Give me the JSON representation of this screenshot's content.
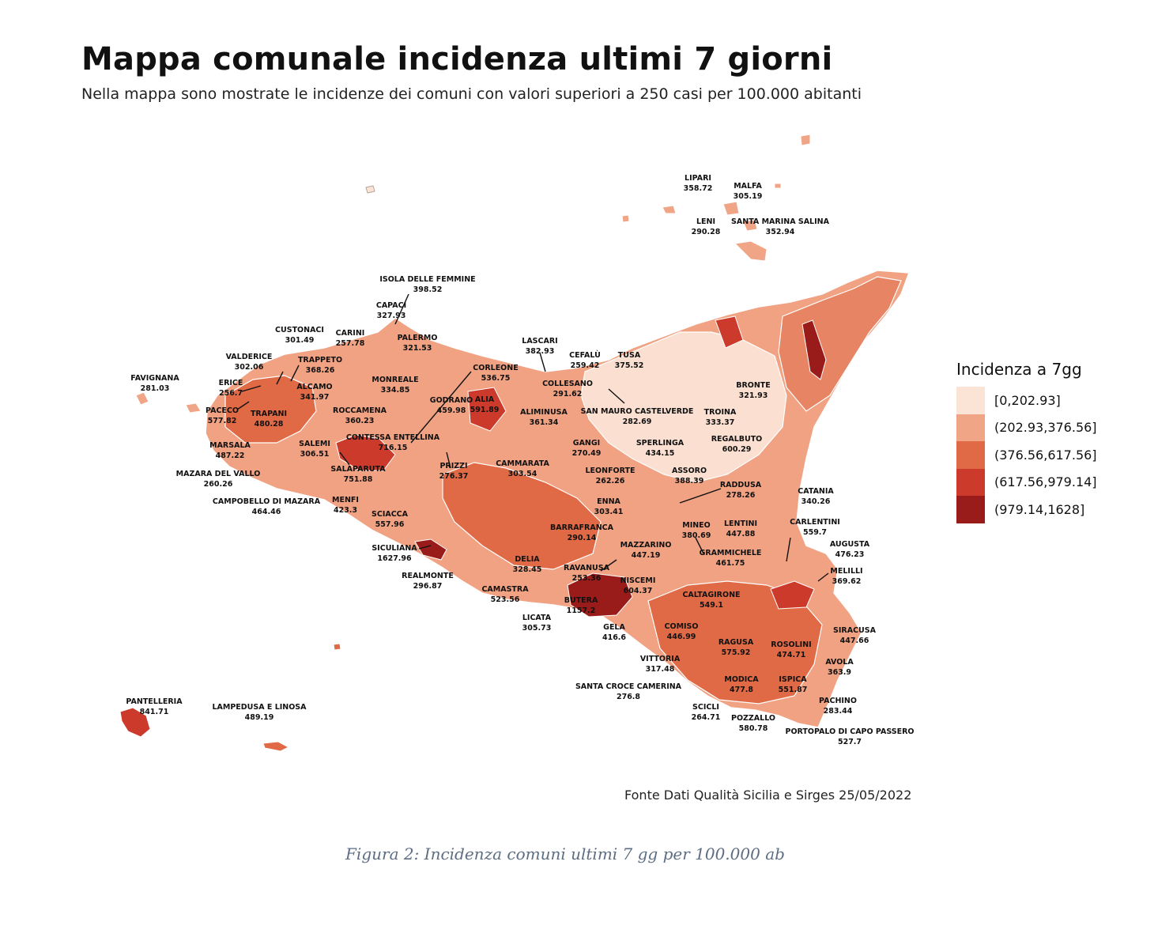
{
  "title": "Mappa comunale incidenza ultimi 7 giorni",
  "subtitle": "Nella mappa sono mostrate le incidenze dei comuni con valori superiori a 250 casi per 100.000 abitanti",
  "legend": {
    "title": "Incidenza a 7gg",
    "classes": [
      {
        "label": "[0,202.93]",
        "color": "#fbe3d6"
      },
      {
        "label": "(202.93,376.56]",
        "color": "#f1a587"
      },
      {
        "label": "(376.56,617.56]",
        "color": "#e06a45"
      },
      {
        "label": "(617.56,979.14]",
        "color": "#cc3a2b"
      },
      {
        "label": "(979.14,1628]",
        "color": "#9a1c1a"
      }
    ]
  },
  "places": [
    {
      "name": "LIPARI",
      "value": "358.72"
    },
    {
      "name": "MALFA",
      "value": "305.19"
    },
    {
      "name": "LENI",
      "value": "290.28"
    },
    {
      "name": "SANTA MARINA SALINA",
      "value": "352.94"
    },
    {
      "name": "ISOLA DELLE FEMMINE",
      "value": "398.52"
    },
    {
      "name": "CAPACI",
      "value": "327.93"
    },
    {
      "name": "CUSTONACI",
      "value": "301.49"
    },
    {
      "name": "CARINI",
      "value": "257.78"
    },
    {
      "name": "PALERMO",
      "value": "321.53"
    },
    {
      "name": "LASCARI",
      "value": "382.93"
    },
    {
      "name": "VALDERICE",
      "value": "302.06"
    },
    {
      "name": "TRAPPETO",
      "value": "368.26"
    },
    {
      "name": "CEFALÙ",
      "value": "259.42"
    },
    {
      "name": "TUSA",
      "value": "375.52"
    },
    {
      "name": "FAVIGNANA",
      "value": "281.03"
    },
    {
      "name": "CORLEONE",
      "value": "536.75"
    },
    {
      "name": "MONREALE",
      "value": "334.85"
    },
    {
      "name": "ERICE",
      "value": "256.7"
    },
    {
      "name": "ALCAMO",
      "value": "341.97"
    },
    {
      "name": "COLLESANO",
      "value": "291.62"
    },
    {
      "name": "BRONTE",
      "value": "321.93"
    },
    {
      "name": "PACECO",
      "value": "577.82"
    },
    {
      "name": "TRAPANI",
      "value": "480.28"
    },
    {
      "name": "ROCCAMENA",
      "value": "360.23"
    },
    {
      "name": "GODRANO",
      "value": "459.98"
    },
    {
      "name": "ALIA",
      "value": "591.89"
    },
    {
      "name": "ALIMINUSA",
      "value": "361.34"
    },
    {
      "name": "SAN MAURO CASTELVERDE",
      "value": "282.69"
    },
    {
      "name": "TROINA",
      "value": "333.37"
    },
    {
      "name": "CONTESSA ENTELLINA",
      "value": "716.15"
    },
    {
      "name": "MARSALA",
      "value": "487.22"
    },
    {
      "name": "SALEMI",
      "value": "306.51"
    },
    {
      "name": "GANGI",
      "value": "270.49"
    },
    {
      "name": "SPERLINGA",
      "value": "434.15"
    },
    {
      "name": "REGALBUTO",
      "value": "600.29"
    },
    {
      "name": "SALAPARUTA",
      "value": "751.88"
    },
    {
      "name": "PRIZZI",
      "value": "276.37"
    },
    {
      "name": "CAMMARATA",
      "value": "303.54"
    },
    {
      "name": "LEONFORTE",
      "value": "262.26"
    },
    {
      "name": "ASSORO",
      "value": "388.39"
    },
    {
      "name": "MAZARA DEL VALLO",
      "value": "260.26"
    },
    {
      "name": "RADDUSA",
      "value": "278.26"
    },
    {
      "name": "CATANIA",
      "value": "340.26"
    },
    {
      "name": "CAMPOBELLO DI MAZARA",
      "value": "464.46"
    },
    {
      "name": "MENFI",
      "value": "423.3"
    },
    {
      "name": "ENNA",
      "value": "303.41"
    },
    {
      "name": "SCIACCA",
      "value": "557.96"
    },
    {
      "name": "MINEO",
      "value": "380.69"
    },
    {
      "name": "LENTINI",
      "value": "447.88"
    },
    {
      "name": "CARLENTINI",
      "value": "559.7"
    },
    {
      "name": "BARRAFRANCA",
      "value": "290.14"
    },
    {
      "name": "SICULIANA",
      "value": "1627.96"
    },
    {
      "name": "MAZZARINO",
      "value": "447.19"
    },
    {
      "name": "AUGUSTA",
      "value": "476.23"
    },
    {
      "name": "DELIA",
      "value": "328.45"
    },
    {
      "name": "GRAMMICHELE",
      "value": "461.75"
    },
    {
      "name": "MELILLI",
      "value": "369.62"
    },
    {
      "name": "REALMONTE",
      "value": "296.87"
    },
    {
      "name": "RAVANUSA",
      "value": "253.36"
    },
    {
      "name": "NISCEMI",
      "value": "604.37"
    },
    {
      "name": "CALTAGIRONE",
      "value": "549.1"
    },
    {
      "name": "CAMASTRA",
      "value": "523.56"
    },
    {
      "name": "BUTERA",
      "value": "1157.2"
    },
    {
      "name": "LICATA",
      "value": "305.73"
    },
    {
      "name": "GELA",
      "value": "416.6"
    },
    {
      "name": "COMISO",
      "value": "446.99"
    },
    {
      "name": "SIRACUSA",
      "value": "447.66"
    },
    {
      "name": "RAGUSA",
      "value": "575.92"
    },
    {
      "name": "ROSOLINI",
      "value": "474.71"
    },
    {
      "name": "VITTORIA",
      "value": "317.48"
    },
    {
      "name": "AVOLA",
      "value": "363.9"
    },
    {
      "name": "MODICA",
      "value": "477.8"
    },
    {
      "name": "ISPICA",
      "value": "551.87"
    },
    {
      "name": "SANTA CROCE CAMERINA",
      "value": "276.8"
    },
    {
      "name": "PACHINO",
      "value": "283.44"
    },
    {
      "name": "PANTELLERIA",
      "value": "841.71"
    },
    {
      "name": "LAMPEDUSA E LINOSA",
      "value": "489.19"
    },
    {
      "name": "SCICLI",
      "value": "264.71"
    },
    {
      "name": "POZZALLO",
      "value": "580.78"
    },
    {
      "name": "PORTOPALO DI CAPO PASSERO",
      "value": "527.7"
    }
  ],
  "source": "Fonte Dati Qualità Sicilia e Sirges 25/05/2022",
  "caption": "Figura 2: Incidenza comuni ultimi 7 gg per 100.000 ab"
}
